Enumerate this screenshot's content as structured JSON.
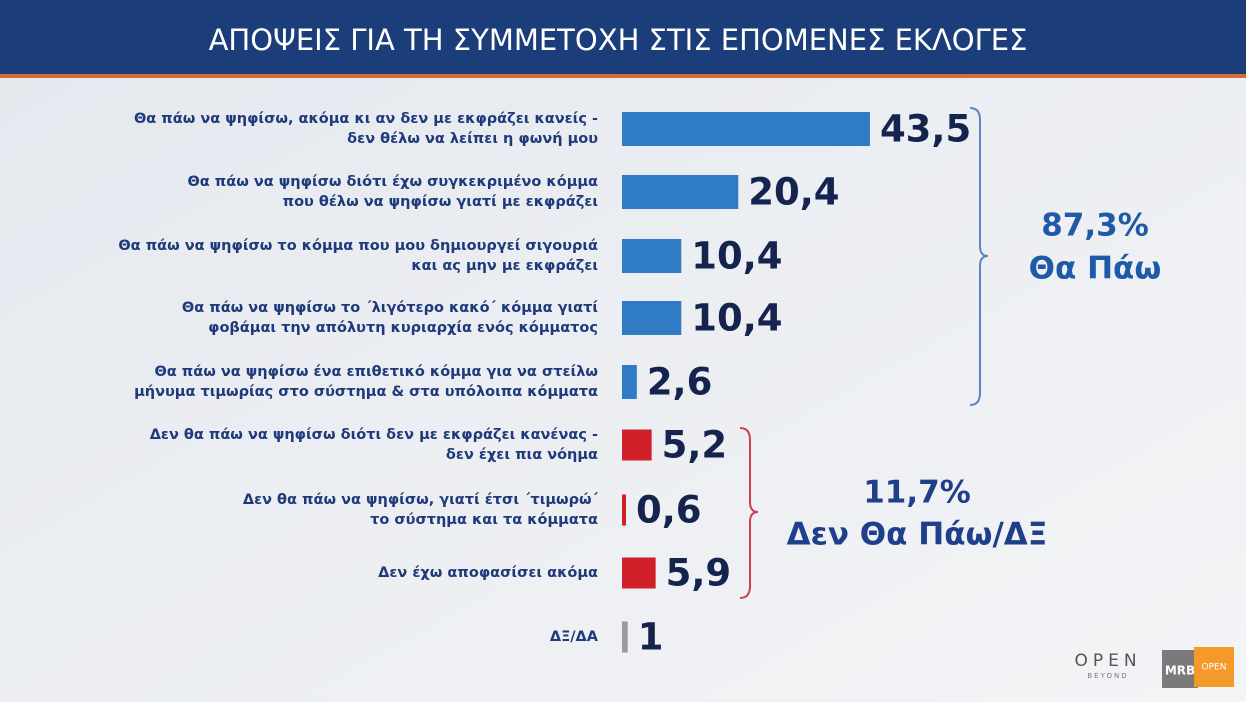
{
  "chart_data": {
    "type": "bar",
    "orientation": "horizontal",
    "title": "ΑΠΟΨΕΙΣ ΓΙΑ ΤΗ ΣΥΜΜΕΤΟΧΗ ΣΤΙΣ ΕΠΟΜΕΝΕΣ ΕΚΛΟΓΕΣ",
    "categories": [
      "Θα πάω να ψηφίσω, ακόμα κι αν δεν με εκφράζει κανείς -\nδεν θέλω να λείπει η φωνή μου",
      "Θα πάω να ψηφίσω διότι έχω συγκεκριμένο κόμμα\nπου θέλω να ψηφίσω γιατί με εκφράζει",
      "Θα πάω να ψηφίσω το κόμμα που μου δημιουργεί σιγουριά\nκαι ας μην με εκφράζει",
      "Θα πάω να ψηφίσω το ΄λιγότερο κακό΄ κόμμα γιατί\nφοβάμαι την απόλυτη κυριαρχία ενός κόμματος",
      "Θα πάω να ψηφίσω ένα επιθετικό κόμμα για να στείλω\nμήνυμα τιμωρίας στο σύστημα & στα υπόλοιπα κόμματα",
      "Δεν θα πάω να ψηφίσω διότι δεν με εκφράζει κανένας -\nδεν έχει πια νόημα",
      "Δεν θα πάω να ψηφίσω, γιατί έτσι ΄τιμωρώ΄\nτο σύστημα και τα κόμματα",
      "Δεν έχω αποφασίσει ακόμα",
      "ΔΞ/ΔΑ"
    ],
    "values": [
      43.5,
      20.4,
      10.4,
      10.4,
      2.6,
      5.2,
      0.6,
      5.9,
      1
    ],
    "value_labels": [
      "43,5",
      "20,4",
      "10,4",
      "10,4",
      "2,6",
      "5,2",
      "0,6",
      "5,9",
      "1"
    ],
    "colors": [
      "#2f7cc4",
      "#2f7cc4",
      "#2f7cc4",
      "#2f7cc4",
      "#2f7cc4",
      "#d0202a",
      "#d0202a",
      "#d0202a",
      "#9a9a9a"
    ],
    "annotations": [
      {
        "total": "87,3%",
        "text": "Θα Πάω",
        "color": "#1f5aa8"
      },
      {
        "total": "11,7%",
        "text": "Δεν Θα Πάω/ΔΞ",
        "color": "#1f3f8a"
      }
    ],
    "logos": {
      "brand": "OPEN",
      "tagline": "BEYOND",
      "pollster": "MRB",
      "badge": "OPEN"
    }
  }
}
